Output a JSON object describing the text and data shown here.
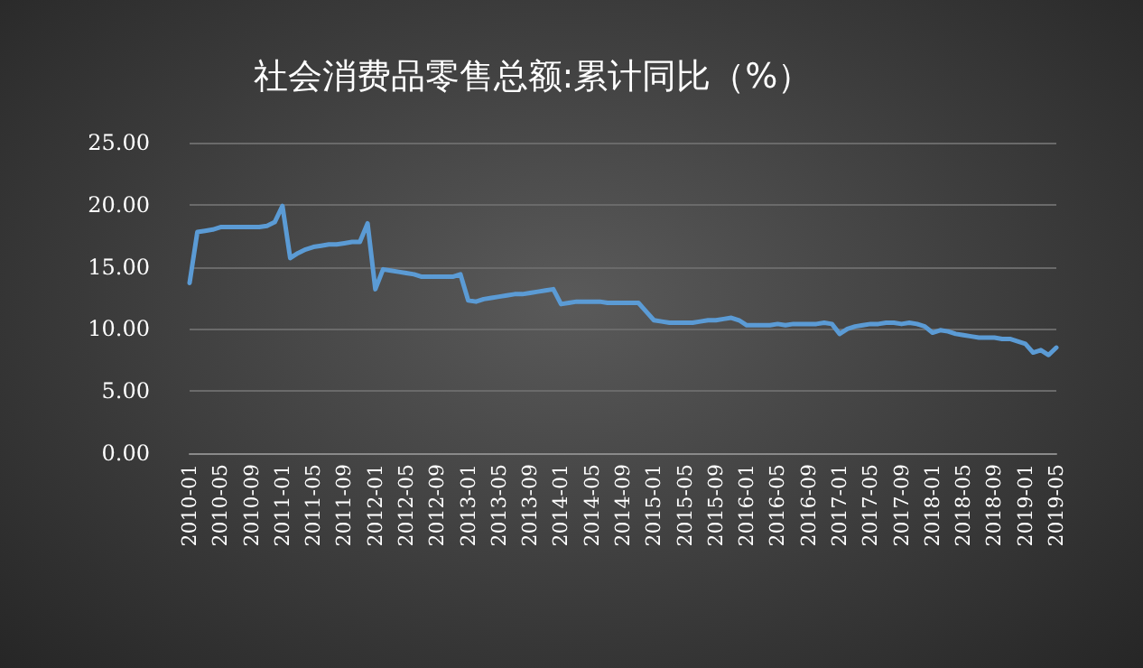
{
  "chart_data": {
    "type": "line",
    "title": "社会消费品零售总额:累计同比（%）",
    "categories": [
      "2010-01",
      null,
      null,
      null,
      "2010-05",
      null,
      null,
      null,
      "2010-09",
      null,
      null,
      null,
      "2011-01",
      null,
      null,
      null,
      "2011-05",
      null,
      null,
      null,
      "2011-09",
      null,
      null,
      null,
      "2012-01",
      null,
      null,
      null,
      "2012-05",
      null,
      null,
      null,
      "2012-09",
      null,
      null,
      null,
      "2013-01",
      null,
      null,
      null,
      "2013-05",
      null,
      null,
      null,
      "2013-09",
      null,
      null,
      null,
      "2014-01",
      null,
      null,
      null,
      "2014-05",
      null,
      null,
      null,
      "2014-09",
      null,
      null,
      null,
      "2015-01",
      null,
      null,
      null,
      "2015-05",
      null,
      null,
      null,
      "2015-09",
      null,
      null,
      null,
      "2016-01",
      null,
      null,
      null,
      "2016-05",
      null,
      null,
      null,
      "2016-09",
      null,
      null,
      null,
      "2017-01",
      null,
      null,
      null,
      "2017-05",
      null,
      null,
      null,
      "2017-09",
      null,
      null,
      null,
      "2018-01",
      null,
      null,
      null,
      "2018-05",
      null,
      null,
      null,
      "2018-09",
      null,
      null,
      null,
      "2019-01",
      null,
      null,
      null,
      "2019-05"
    ],
    "series": [
      {
        "color": "#5b9bd5",
        "values": [
          13.7,
          17.8,
          17.9,
          18.0,
          18.2,
          18.2,
          18.2,
          18.2,
          18.2,
          18.2,
          18.3,
          18.6,
          19.9,
          15.7,
          16.1,
          16.4,
          16.6,
          16.7,
          16.8,
          16.8,
          16.9,
          17.0,
          17.0,
          18.5,
          13.2,
          14.8,
          14.7,
          14.6,
          14.5,
          14.4,
          14.2,
          14.2,
          14.2,
          14.2,
          14.2,
          14.4,
          12.3,
          12.2,
          12.4,
          12.5,
          12.6,
          12.7,
          12.8,
          12.8,
          12.9,
          13.0,
          13.1,
          13.2,
          12.0,
          12.1,
          12.2,
          12.2,
          12.2,
          12.2,
          12.1,
          12.1,
          12.1,
          12.1,
          12.1,
          11.4,
          10.7,
          10.6,
          10.5,
          10.5,
          10.5,
          10.5,
          10.6,
          10.7,
          10.7,
          10.8,
          10.9,
          10.7,
          10.3,
          10.3,
          10.3,
          10.3,
          10.4,
          10.3,
          10.4,
          10.4,
          10.4,
          10.4,
          10.5,
          10.4,
          9.6,
          10.0,
          10.2,
          10.3,
          10.4,
          10.4,
          10.5,
          10.5,
          10.4,
          10.5,
          10.4,
          10.2,
          9.7,
          9.9,
          9.8,
          9.6,
          9.5,
          9.4,
          9.3,
          9.3,
          9.3,
          9.2,
          9.2,
          9.0,
          8.8,
          8.1,
          8.3,
          7.9,
          8.5
        ]
      }
    ],
    "ylim": [
      0,
      25
    ],
    "yticks": [
      {
        "value": 0,
        "label": "0.00"
      },
      {
        "value": 5,
        "label": "5.00"
      },
      {
        "value": 10,
        "label": "10.00"
      },
      {
        "value": 15,
        "label": "15.00"
      },
      {
        "value": 20,
        "label": "20.00"
      },
      {
        "value": 25,
        "label": "25.00"
      }
    ],
    "grid": "y",
    "marker": "none",
    "line_style": "solid"
  }
}
